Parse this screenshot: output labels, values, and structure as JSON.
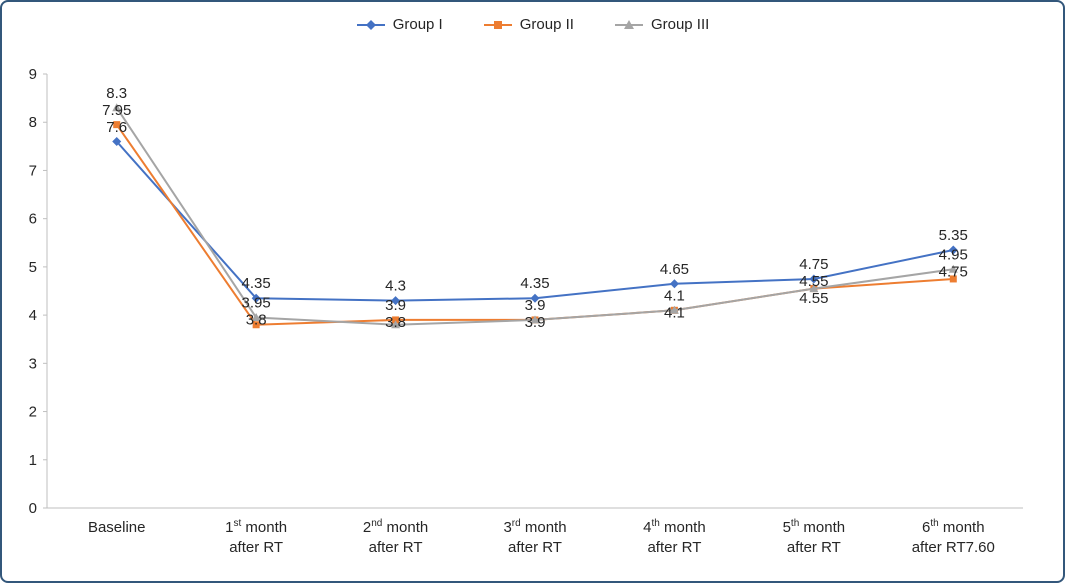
{
  "chart_data": {
    "type": "line",
    "title": "",
    "xlabel": "",
    "ylabel": "",
    "ylim": [
      0,
      9
    ],
    "yticks": [
      0,
      1,
      2,
      3,
      4,
      5,
      6,
      7,
      8,
      9
    ],
    "grid": false,
    "legend_position": "top",
    "axis_color": "#BFBFBF",
    "text_color": "#262626",
    "categories": [
      {
        "pre": "Baseline",
        "sup": "",
        "post": "",
        "line2": ""
      },
      {
        "pre": "1",
        "sup": "st",
        "post": " month",
        "line2": "after RT"
      },
      {
        "pre": "2",
        "sup": "nd",
        "post": " month",
        "line2": "after RT"
      },
      {
        "pre": "3",
        "sup": "rd",
        "post": " month",
        "line2": "after RT"
      },
      {
        "pre": "4",
        "sup": "th",
        "post": " month",
        "line2": "after RT"
      },
      {
        "pre": "5",
        "sup": "th",
        "post": " month",
        "line2": "after RT"
      },
      {
        "pre": "6",
        "sup": "th",
        "post": " month",
        "line2": "after RT7.60"
      }
    ],
    "series": [
      {
        "name": "Group I",
        "color": "#4472C4",
        "marker": "diamond",
        "values": [
          7.6,
          4.35,
          4.3,
          4.35,
          4.65,
          4.75,
          5.35
        ],
        "labels": [
          "7.6",
          "4.35",
          "4.3",
          "4.35",
          "4.65",
          "4.75",
          "5.35"
        ]
      },
      {
        "name": "Group II",
        "color": "#ED7D31",
        "marker": "square",
        "values": [
          7.95,
          3.8,
          3.9,
          3.9,
          4.1,
          4.55,
          4.75
        ],
        "labels": [
          "7.95",
          "3.8",
          "3.9",
          "3.9",
          "4.1",
          "4.55",
          "4.75"
        ]
      },
      {
        "name": "Group III",
        "color": "#A5A5A5",
        "marker": "triangle",
        "values": [
          8.3,
          3.95,
          3.8,
          3.9,
          4.1,
          4.55,
          4.95
        ],
        "labels": [
          "8.3",
          "3.95",
          "3.8",
          "3.9",
          "4.1",
          "4.55",
          "4.95"
        ]
      }
    ]
  }
}
